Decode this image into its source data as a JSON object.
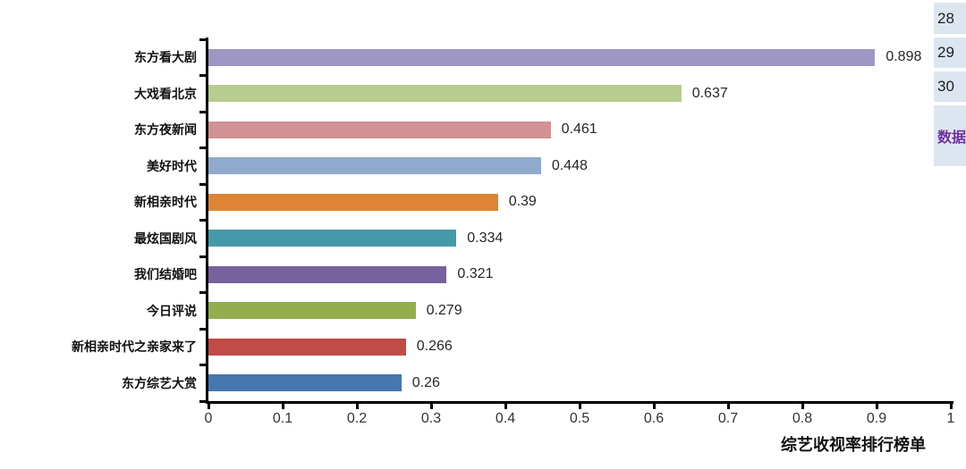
{
  "chart_data": {
    "type": "bar",
    "orientation": "horizontal",
    "title": "综艺收视率排行榜单",
    "xlabel": "综艺收视率排行榜单",
    "ylabel": "",
    "categories": [
      "东方看大剧",
      "大戏看北京",
      "东方夜新闻",
      "美好时代",
      "新相亲时代",
      "最炫国剧风",
      "我们结婚吧",
      "今日评说",
      "新相亲时代之亲家来了",
      "东方综艺大赏"
    ],
    "values": [
      0.898,
      0.637,
      0.461,
      0.448,
      0.39,
      0.334,
      0.321,
      0.279,
      0.266,
      0.26
    ],
    "value_labels": [
      "0.898",
      "0.637",
      "0.461",
      "0.448",
      "0.39",
      "0.334",
      "0.321",
      "0.279",
      "0.266",
      "0.26"
    ],
    "bar_colors": [
      "#9e96c3",
      "#b7cd8f",
      "#d29192",
      "#8faacd",
      "#de8434",
      "#4599a9",
      "#77629e",
      "#95ae4d",
      "#c04b47",
      "#4677ae"
    ],
    "xlim": [
      0,
      1
    ],
    "x_ticks": [
      "0",
      "0.1",
      "0.2",
      "0.3",
      "0.4",
      "0.5",
      "0.6",
      "0.7",
      "0.8",
      "0.9",
      "1"
    ],
    "grid": false,
    "legend": "none",
    "axis_color": "#000000",
    "label_color": "#333333",
    "title_position": "bottom-right"
  },
  "side_panel": {
    "background": "#dde6f0",
    "row_numbers": [
      "28",
      "29",
      "30"
    ],
    "data_cell_text": "数据",
    "data_cell_text_color": "#7030a0"
  }
}
